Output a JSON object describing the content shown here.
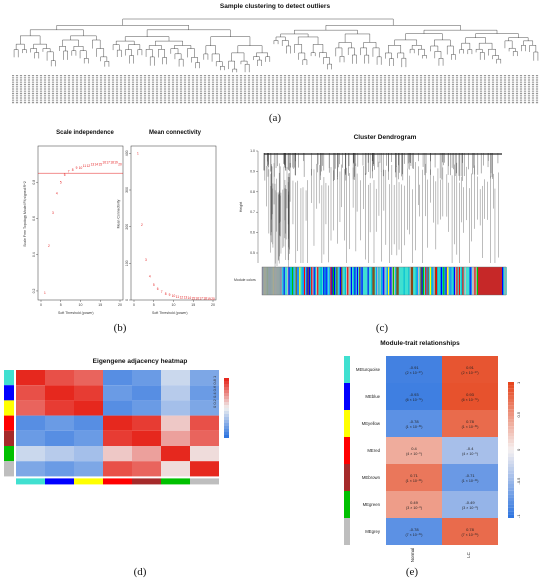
{
  "panels": {
    "a": {
      "label": "(a)",
      "title": "Sample clustering to detect outliers"
    },
    "b": {
      "label": "(b)",
      "left": {
        "title": "Scale independence",
        "xlabel": "Soft Threshold (power)",
        "ylabel": "Scale Free Topology Model Fit,signed R^2"
      },
      "right": {
        "title": "Mean connectivity",
        "xlabel": "Soft Threshold (power)",
        "ylabel": "Mean Connectivity"
      }
    },
    "c": {
      "label": "(c)",
      "title": "Cluster Dendrogram",
      "ylabel": "Height",
      "module_colors_label": "Module colors"
    },
    "d": {
      "label": "(d)",
      "title": "Eigengene adjacency heatmap",
      "scale_label": "0 0.2 0.4 0.6 0.8 1"
    },
    "e": {
      "label": "(e)",
      "title": "Module-trait relationships"
    }
  },
  "chart_data": [
    {
      "type": "scatter",
      "title": "Scale independence",
      "xlabel": "Soft Threshold (power)",
      "ylabel": "Scale Free Topology Model Fit,signed R^2",
      "xlim": [
        0,
        20
      ],
      "ylim": [
        0.15,
        1.0
      ],
      "xticks": [
        0,
        5,
        10,
        15,
        20
      ],
      "yticks": [
        0.2,
        0.4,
        0.6,
        0.8
      ],
      "hline": 0.85,
      "x": [
        1,
        2,
        3,
        4,
        5,
        6,
        7,
        8,
        9,
        10,
        11,
        12,
        13,
        14,
        15,
        16,
        17,
        18,
        19,
        20
      ],
      "y": [
        0.19,
        0.45,
        0.63,
        0.74,
        0.8,
        0.84,
        0.86,
        0.87,
        0.88,
        0.88,
        0.89,
        0.89,
        0.9,
        0.9,
        0.9,
        0.91,
        0.91,
        0.91,
        0.91,
        0.9
      ],
      "color": "#e41a1c"
    },
    {
      "type": "scatter",
      "title": "Mean connectivity",
      "xlabel": "Soft Threshold (power)",
      "ylabel": "Mean Connectivity",
      "xlim": [
        0,
        20
      ],
      "ylim": [
        0,
        420
      ],
      "xticks": [
        0,
        5,
        10,
        15,
        20
      ],
      "yticks": [
        0,
        100,
        200,
        300,
        400
      ],
      "x": [
        1,
        2,
        3,
        4,
        5,
        6,
        7,
        8,
        9,
        10,
        11,
        12,
        13,
        14,
        15,
        16,
        17,
        18,
        19,
        20
      ],
      "y": [
        400,
        205,
        110,
        65,
        42,
        30,
        22,
        17,
        14,
        11,
        9,
        8,
        7,
        6,
        5,
        5,
        4,
        4,
        3,
        3
      ],
      "color": "#e41a1c"
    },
    {
      "type": "heatmap",
      "title": "Eigengene adjacency heatmap",
      "modules": [
        "turquoise",
        "blue",
        "yellow",
        "red",
        "brown",
        "green",
        "grey"
      ],
      "values": [
        [
          1.0,
          0.9,
          0.85,
          0.1,
          0.15,
          0.4,
          0.2
        ],
        [
          0.9,
          1.0,
          0.95,
          0.15,
          0.1,
          0.35,
          0.15
        ],
        [
          0.85,
          0.95,
          1.0,
          0.1,
          0.15,
          0.3,
          0.2
        ],
        [
          0.1,
          0.15,
          0.1,
          1.0,
          0.95,
          0.6,
          0.9
        ],
        [
          0.15,
          0.1,
          0.15,
          0.95,
          1.0,
          0.7,
          0.85
        ],
        [
          0.4,
          0.35,
          0.3,
          0.6,
          0.7,
          1.0,
          0.55
        ],
        [
          0.2,
          0.15,
          0.2,
          0.9,
          0.85,
          0.55,
          1.0
        ]
      ],
      "scale": [
        0,
        1
      ]
    },
    {
      "type": "heatmap",
      "title": "Module-trait relationships",
      "rows": [
        "MEturquoise",
        "MEblue",
        "MEyellow",
        "MEred",
        "MEbrown",
        "MEgreen",
        "MEgrey"
      ],
      "row_colors": [
        "#40e0d0",
        "#0000ff",
        "#ffff00",
        "#ff0000",
        "#a52a2a",
        "#00c000",
        "#bebebe"
      ],
      "columns": [
        "Normal",
        "LC"
      ],
      "values": [
        [
          -0.91,
          0.91
        ],
        [
          -0.93,
          0.93
        ],
        [
          -0.78,
          0.78
        ],
        [
          0.4,
          -0.4
        ],
        [
          0.71,
          -0.71
        ],
        [
          0.49,
          -0.49
        ],
        [
          -0.78,
          0.78
        ]
      ],
      "pvalues": [
        [
          "(2 × 10⁻⁶⁷)",
          "(2 × 10⁻⁶⁷)"
        ],
        [
          "(6 × 10⁻⁷⁰)",
          "(6 × 10⁻⁷⁰)"
        ],
        [
          "(1 × 10⁻³¹)",
          "(1 × 10⁻³¹)"
        ],
        [
          "(4 × 10⁻⁶)",
          "(4 × 10⁻⁶)"
        ],
        [
          "(1 × 10⁻²¹)",
          "(1 × 10⁻²¹)"
        ],
        [
          "(3 × 10⁻⁸)",
          "(3 × 10⁻⁸)"
        ],
        [
          "(7 × 10⁻³⁰)",
          "(7 × 10⁻³⁰)"
        ]
      ],
      "scale": [
        -1,
        1
      ],
      "scale_ticks": [
        "1",
        "0.5",
        "0",
        "-0.5",
        "-1"
      ]
    }
  ]
}
